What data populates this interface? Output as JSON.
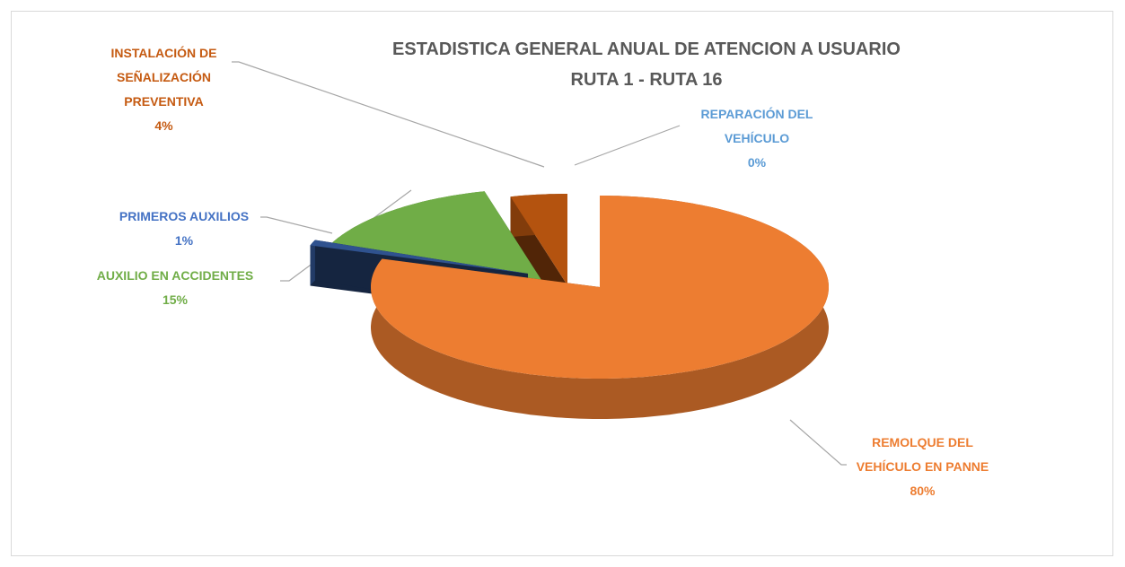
{
  "chart_data": {
    "type": "pie3d",
    "title": "ESTADISTICA GENERAL ANUAL DE ATENCION A USUARIO",
    "subtitle": "RUTA 1 -  RUTA 16",
    "categories": [
      "REMOLQUE DEL VEHÍCULO EN PANNE",
      "PRIMEROS AUXILIOS",
      "AUXILIO EN ACCIDENTES",
      "INSTALACIÓN DE SEÑALIZACIÓN PREVENTIVA",
      "REPARACIÓN DEL VEHÍCULO"
    ],
    "values": [
      80,
      1,
      15,
      4,
      0
    ],
    "value_labels": [
      "80%",
      "1%",
      "15%",
      "4%",
      "0%"
    ],
    "colors": [
      "#ED7D31",
      "#2F528F",
      "#70AD47",
      "#B4530F",
      "#5B9BD5"
    ],
    "label_colors": [
      "#ED7D31",
      "#4472C4",
      "#70AD47",
      "#C55A11",
      "#5B9BD5"
    ]
  }
}
